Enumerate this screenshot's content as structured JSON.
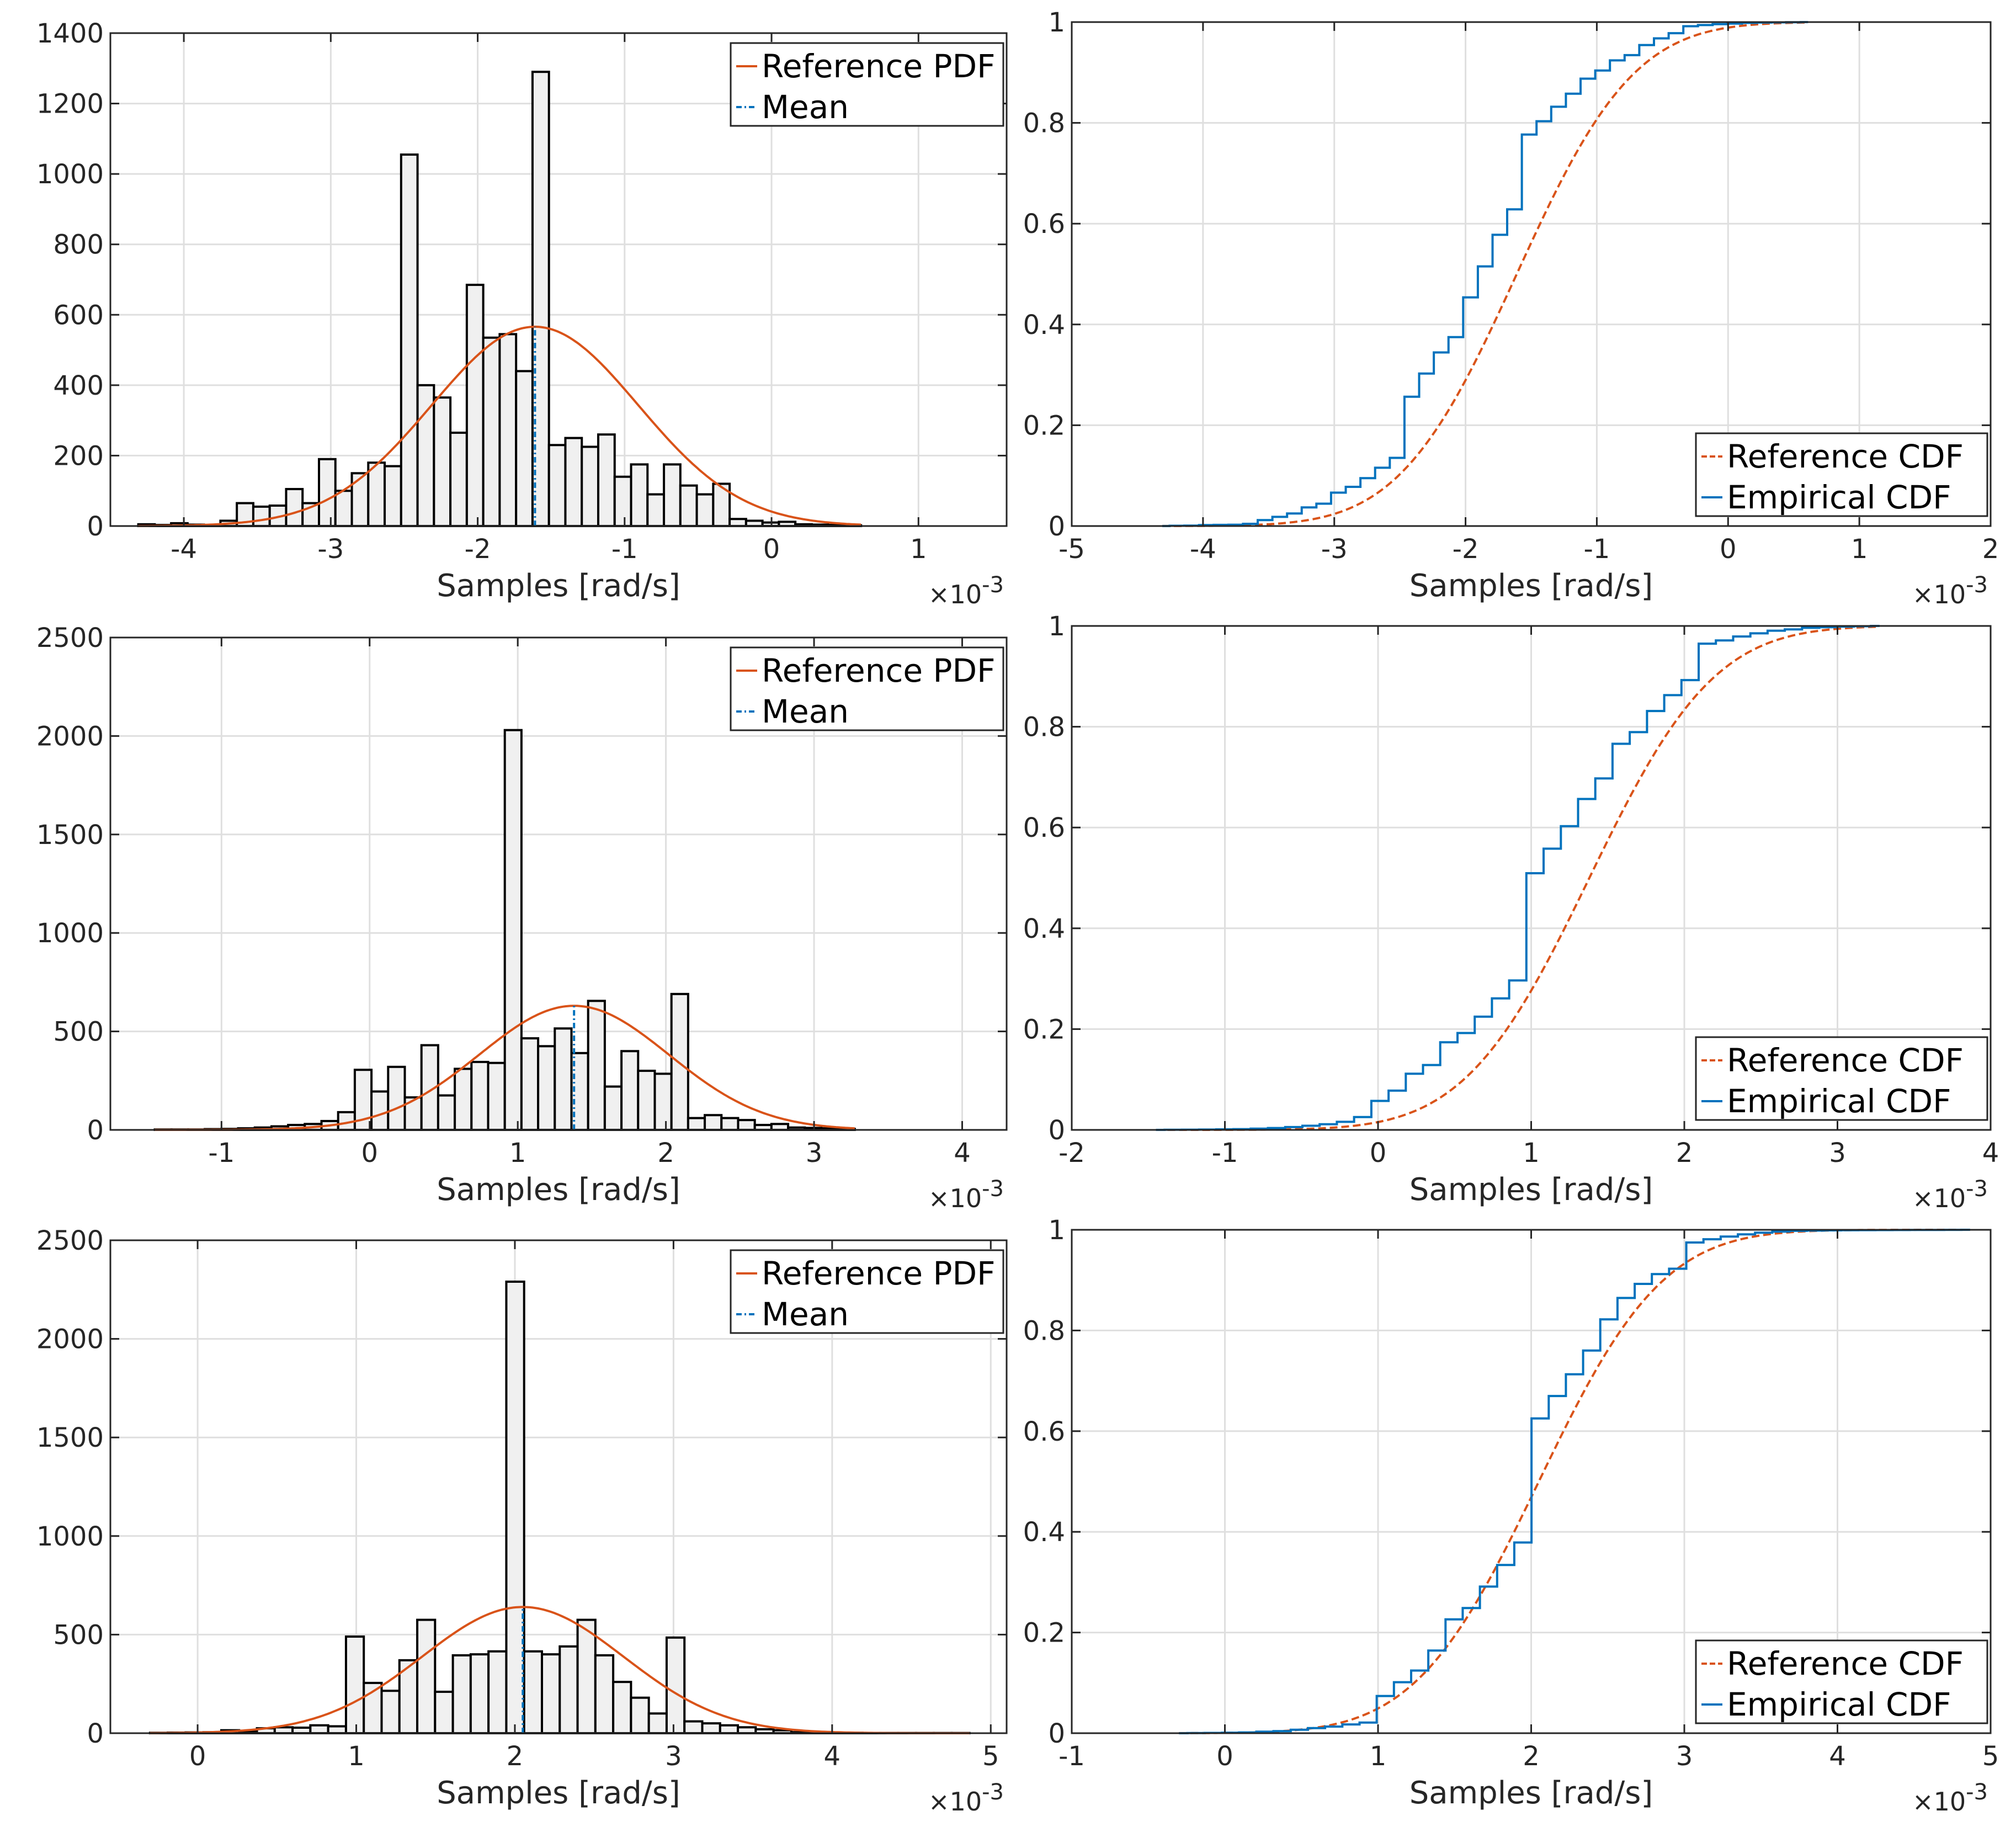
{
  "colors": {
    "reference": "#D95319",
    "empirical": "#0072BD",
    "bar_fill": "#F0F0F0",
    "bar_edge": "#000000",
    "grid": "#DFDFDF",
    "axis": "#262626"
  },
  "chart_data": [
    {
      "id": "pdf1",
      "type": "bar",
      "xlabel": "Samples [rad/s]",
      "ylabel": "",
      "exponent": "-3",
      "xlim": [
        -4.5,
        1.6
      ],
      "ylim": [
        0,
        1400
      ],
      "xticks": [
        -4,
        -3,
        -2,
        -1,
        0,
        1
      ],
      "yticks": [
        0,
        200,
        400,
        600,
        800,
        1000,
        1200,
        1400
      ],
      "bin_start": -4.31,
      "bin_width": 0.1118,
      "counts": [
        5,
        3,
        8,
        4,
        3,
        15,
        65,
        55,
        58,
        105,
        65,
        190,
        100,
        150,
        180,
        170,
        1055,
        400,
        365,
        265,
        685,
        535,
        545,
        440,
        1290,
        230,
        250,
        225,
        260,
        140,
        175,
        90,
        175,
        115,
        90,
        120,
        20,
        15,
        10,
        12,
        5,
        4,
        3,
        2
      ],
      "reference": {
        "mean": -1.61,
        "sd": 0.703,
        "peak": 566
      },
      "mean_line": -1.61,
      "legend": [
        "Reference PDF",
        "Mean"
      ]
    },
    {
      "id": "cdf1",
      "type": "line",
      "xlabel": "Samples [rad/s]",
      "ylabel": "",
      "exponent": "-3",
      "xlim": [
        -5,
        2
      ],
      "ylim": [
        0,
        1
      ],
      "xticks": [
        -5,
        -4,
        -3,
        -2,
        -1,
        0,
        1,
        2
      ],
      "yticks": [
        0,
        0.2,
        0.4,
        0.6,
        0.8,
        1
      ],
      "source": "pdf1",
      "reference": {
        "mean": -1.61,
        "sd": 0.703
      },
      "legend": [
        "Reference CDF",
        "Empirical CDF"
      ]
    },
    {
      "id": "pdf2",
      "type": "bar",
      "xlabel": "Samples [rad/s]",
      "ylabel": "",
      "exponent": "-3",
      "xlim": [
        -1.75,
        4.3
      ],
      "ylim": [
        0,
        2500
      ],
      "xticks": [
        -1,
        0,
        1,
        2,
        3,
        4
      ],
      "yticks": [
        0,
        500,
        1000,
        1500,
        2000,
        2500
      ],
      "bin_start": -1.45,
      "bin_width": 0.1125,
      "counts": [
        2,
        2,
        2,
        4,
        5,
        8,
        12,
        18,
        25,
        30,
        45,
        90,
        305,
        195,
        320,
        165,
        430,
        175,
        310,
        345,
        340,
        2030,
        465,
        425,
        515,
        390,
        655,
        220,
        400,
        300,
        285,
        690,
        60,
        75,
        60,
        50,
        25,
        30,
        12,
        10,
        8,
        5
      ],
      "reference": {
        "mean": 1.38,
        "sd": 0.64,
        "peak": 630
      },
      "mean_line": 1.38,
      "legend": [
        "Reference PDF",
        "Mean"
      ]
    },
    {
      "id": "cdf2",
      "type": "line",
      "xlabel": "Samples [rad/s]",
      "ylabel": "",
      "exponent": "-3",
      "xlim": [
        -2,
        4
      ],
      "ylim": [
        0,
        1
      ],
      "xticks": [
        -2,
        -1,
        0,
        1,
        2,
        3,
        4
      ],
      "yticks": [
        0,
        0.2,
        0.4,
        0.6,
        0.8,
        1
      ],
      "source": "pdf2",
      "reference": {
        "mean": 1.38,
        "sd": 0.64
      },
      "legend": [
        "Reference CDF",
        "Empirical CDF"
      ]
    },
    {
      "id": "pdf3",
      "type": "bar",
      "xlabel": "Samples [rad/s]",
      "ylabel": "",
      "exponent": "-3",
      "xlim": [
        -0.55,
        5.1
      ],
      "ylim": [
        0,
        2500
      ],
      "xticks": [
        0,
        1,
        2,
        3,
        4,
        5
      ],
      "yticks": [
        0,
        500,
        1000,
        1500,
        2000,
        2500
      ],
      "bin_start": -0.3,
      "bin_width": 0.1123,
      "counts": [
        2,
        3,
        4,
        5,
        15,
        10,
        25,
        30,
        28,
        40,
        35,
        490,
        255,
        215,
        370,
        575,
        210,
        395,
        400,
        415,
        2290,
        415,
        400,
        440,
        575,
        395,
        260,
        180,
        100,
        485,
        60,
        50,
        40,
        30,
        20,
        15,
        5,
        4,
        2,
        2,
        1,
        1,
        1,
        1,
        1,
        1
      ],
      "reference": {
        "mean": 2.05,
        "sd": 0.635,
        "peak": 640
      },
      "mean_line": 2.05,
      "legend": [
        "Reference PDF",
        "Mean"
      ]
    },
    {
      "id": "cdf3",
      "type": "line",
      "xlabel": "Samples [rad/s]",
      "ylabel": "",
      "exponent": "-3",
      "xlim": [
        -1,
        5
      ],
      "ylim": [
        0,
        1
      ],
      "xticks": [
        -1,
        0,
        1,
        2,
        3,
        4,
        5
      ],
      "yticks": [
        0,
        0.2,
        0.4,
        0.6,
        0.8,
        1
      ],
      "source": "pdf3",
      "reference": {
        "mean": 2.05,
        "sd": 0.635
      },
      "legend": [
        "Reference CDF",
        "Empirical CDF"
      ]
    }
  ]
}
